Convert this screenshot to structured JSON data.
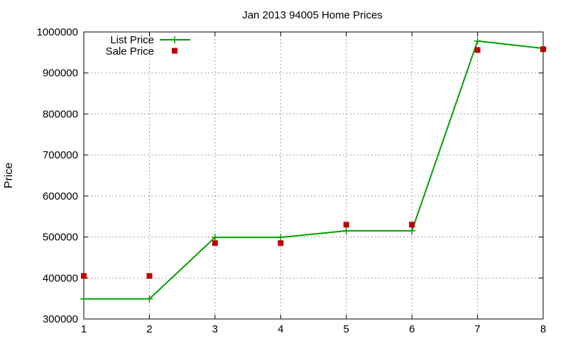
{
  "colors": {
    "list_price": "#00a000",
    "sale_price": "#c00000"
  },
  "chart_data": {
    "type": "line",
    "title": "Jan 2013 94005 Home Prices",
    "xlabel": "",
    "ylabel": "Price",
    "x": [
      1,
      2,
      3,
      4,
      5,
      6,
      7,
      8
    ],
    "xlim": [
      1,
      8
    ],
    "ylim": [
      300000,
      1000000
    ],
    "xticks": [
      "1",
      "2",
      "3",
      "4",
      "5",
      "6",
      "7",
      "8"
    ],
    "yticks": [
      "300000",
      "400000",
      "500000",
      "600000",
      "700000",
      "800000",
      "900000",
      "1000000"
    ],
    "grid": true,
    "legend_position": "top-left",
    "series": [
      {
        "name": "List Price",
        "style": "line-with-plus-markers",
        "values": [
          349000,
          349000,
          499000,
          499000,
          515000,
          515000,
          978000,
          960000
        ]
      },
      {
        "name": "Sale Price",
        "style": "square-points",
        "values": [
          405000,
          405000,
          485000,
          485000,
          530000,
          530000,
          956000,
          958000
        ]
      }
    ]
  }
}
